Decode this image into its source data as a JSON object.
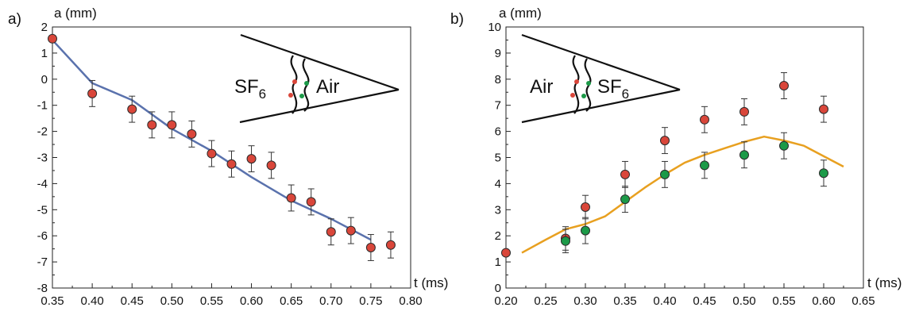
{
  "chart_data": [
    {
      "type": "scatter",
      "panel_label": "a)",
      "ylabel": "a (mm)",
      "xlabel": "t (ms)",
      "xlim": [
        0.35,
        0.8
      ],
      "ylim": [
        -8,
        2
      ],
      "x_ticks": [
        "0.35",
        "0.40",
        "0.45",
        "0.50",
        "0.55",
        "0.60",
        "0.65",
        "0.70",
        "0.75",
        "0.80"
      ],
      "y_ticks": [
        "-8",
        "-7",
        "-6",
        "-5",
        "-4",
        "-3",
        "-2",
        "-1",
        "0",
        "1",
        "2"
      ],
      "colors": {
        "line": "#5a72ad",
        "marker_red": "#d9463a",
        "marker_green": "#1c9a48"
      },
      "series": [
        {
          "kind": "points",
          "color": "red",
          "x": [
            0.35,
            0.4,
            0.45,
            0.475,
            0.5,
            0.525,
            0.55,
            0.575,
            0.6,
            0.625,
            0.65,
            0.675,
            0.7,
            0.725,
            0.75,
            0.775
          ],
          "y": [
            1.55,
            -0.55,
            -1.15,
            -1.75,
            -1.75,
            -2.1,
            -2.85,
            -3.25,
            -3.05,
            -3.3,
            -4.55,
            -4.7,
            -5.85,
            -5.8,
            -6.45,
            -6.35
          ],
          "err": [
            0,
            0.5,
            0.5,
            0.5,
            0.5,
            0.5,
            0.5,
            0.5,
            0.5,
            0.5,
            0.5,
            0.5,
            0.5,
            0.5,
            0.5,
            0.5
          ]
        },
        {
          "kind": "line",
          "x": [
            0.35,
            0.4,
            0.45,
            0.5,
            0.55,
            0.6,
            0.65,
            0.7,
            0.75
          ],
          "y": [
            1.5,
            -0.15,
            -0.8,
            -1.9,
            -2.75,
            -3.75,
            -4.65,
            -5.35,
            -6.15
          ]
        }
      ],
      "inset": {
        "left_label": "SF",
        "left_sub": "6",
        "right_label": "Air"
      }
    },
    {
      "type": "scatter",
      "panel_label": "b)",
      "ylabel": "a (mm)",
      "xlabel": "t (ms)",
      "xlim": [
        0.2,
        0.65
      ],
      "ylim": [
        0,
        10
      ],
      "x_ticks": [
        "0.20",
        "0.25",
        "0.30",
        "0.35",
        "0.40",
        "0.45",
        "0.50",
        "0.55",
        "0.60",
        "0.65"
      ],
      "y_ticks": [
        "0",
        "1",
        "2",
        "3",
        "4",
        "5",
        "6",
        "7",
        "8",
        "9",
        "10"
      ],
      "colors": {
        "line": "#e8a020",
        "marker_red": "#d9463a",
        "marker_green": "#1c9a48"
      },
      "series": [
        {
          "kind": "points",
          "color": "red",
          "x": [
            0.2,
            0.275,
            0.3,
            0.35,
            0.4,
            0.45,
            0.5,
            0.55,
            0.6
          ],
          "y": [
            1.35,
            1.9,
            3.1,
            4.35,
            5.65,
            6.45,
            6.75,
            7.75,
            6.85
          ],
          "err": [
            0,
            0.45,
            0.45,
            0.5,
            0.5,
            0.5,
            0.5,
            0.5,
            0.5
          ]
        },
        {
          "kind": "points",
          "color": "green",
          "x": [
            0.275,
            0.3,
            0.35,
            0.4,
            0.45,
            0.5,
            0.55,
            0.6
          ],
          "y": [
            1.8,
            2.2,
            3.4,
            4.35,
            4.7,
            5.1,
            5.45,
            4.4
          ],
          "err": [
            0.45,
            0.5,
            0.5,
            0.5,
            0.5,
            0.5,
            0.5,
            0.5
          ]
        },
        {
          "kind": "line",
          "x": [
            0.22,
            0.25,
            0.275,
            0.3,
            0.325,
            0.35,
            0.375,
            0.4,
            0.425,
            0.45,
            0.475,
            0.5,
            0.525,
            0.55,
            0.575,
            0.6,
            0.625
          ],
          "y": [
            1.35,
            1.85,
            2.25,
            2.45,
            2.75,
            3.3,
            3.85,
            4.35,
            4.8,
            5.1,
            5.35,
            5.6,
            5.8,
            5.65,
            5.45,
            5.05,
            4.65
          ]
        }
      ],
      "inset": {
        "left_label": "Air",
        "right_label": "SF",
        "right_sub": "6"
      }
    }
  ]
}
